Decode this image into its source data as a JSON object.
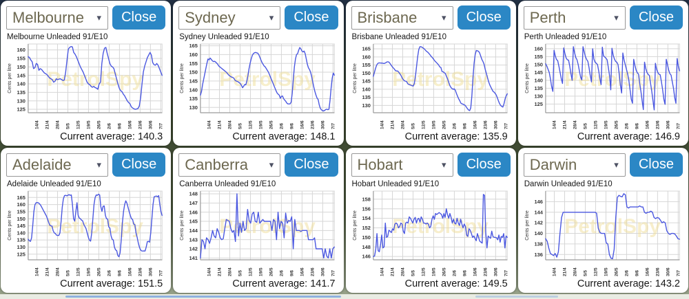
{
  "labels": {
    "close": "Close",
    "avg_prefix": "Current average:"
  },
  "watermark": "PetrolSpy",
  "colors": {
    "close_button": "#2b87c5",
    "line": "#4a57e0",
    "grid": "#d6d6d6",
    "axis": "#9b9b9b",
    "tick_text": "#333333",
    "watermark": "#f0df9a"
  },
  "panels": [
    {
      "city": "Melbourne",
      "title": "Melbourne Unleaded 91/E10",
      "average": "140.3"
    },
    {
      "city": "Sydney",
      "title": "Sydney Unleaded 91/E10",
      "average": "148.1"
    },
    {
      "city": "Brisbane",
      "title": "Brisbane Unleaded 91/E10",
      "average": "135.9"
    },
    {
      "city": "Perth",
      "title": "Perth Unleaded 91/E10",
      "average": "146.9"
    },
    {
      "city": "Adelaide",
      "title": "Adelaide Unleaded 91/E10",
      "average": "151.5"
    },
    {
      "city": "Canberra",
      "title": "Canberra Unleaded 91/E10",
      "average": "141.7"
    },
    {
      "city": "Hobart",
      "title": "Hobart Unleaded 91/E10",
      "average": "149.5"
    },
    {
      "city": "Darwin",
      "title": "Darwin Unleaded 91/E10",
      "average": "143.2"
    }
  ],
  "chart_data": [
    {
      "type": "line",
      "title": "Melbourne Unleaded 91/E10",
      "ylabel": "Cents per litre",
      "x": [
        "14/4",
        "21/4",
        "28/4",
        "5/5",
        "12/5",
        "19/5",
        "26/5",
        "2/6",
        "9/6",
        "16/6",
        "23/6",
        "30/6",
        "7/7"
      ],
      "yticks": [
        125,
        130,
        135,
        140,
        145,
        150,
        155,
        160
      ],
      "ylim": [
        123,
        163.5
      ],
      "average": 140.3,
      "values": [
        156,
        155.5,
        154,
        153,
        149,
        149.5,
        152,
        151.5,
        148,
        149,
        148.5,
        147.5,
        146.5,
        146,
        145.5,
        144.5,
        143.5,
        143,
        142.5,
        141,
        141.5,
        143,
        142.5,
        142.8,
        143,
        142.5,
        142,
        142.3,
        147,
        154,
        160.5,
        161.5,
        162,
        161.8,
        158.5,
        157.5,
        156,
        154,
        152,
        150,
        148.5,
        147,
        145,
        143,
        141,
        140,
        139.5,
        138.5,
        138,
        138.5,
        137.8,
        137.5,
        136.8,
        140,
        141,
        152,
        158,
        161,
        161.5,
        158,
        155,
        152,
        150.5,
        150,
        149,
        146,
        143,
        140,
        137.5,
        136,
        135.5,
        134,
        133,
        131.5,
        130,
        129,
        128.3,
        126.5,
        125.8,
        125.3,
        125,
        125.2,
        125.5,
        127,
        132,
        140,
        147,
        150.5,
        153,
        155.5,
        157,
        158.5,
        157,
        152.5,
        151.3,
        151,
        152,
        151,
        149,
        147,
        145
      ]
    },
    {
      "type": "line",
      "title": "Sydney Unleaded 91/E10",
      "ylabel": "Cents per litre",
      "x": [
        "14/4",
        "21/4",
        "28/4",
        "5/5",
        "12/5",
        "19/5",
        "26/5",
        "2/6",
        "9/6",
        "16/6",
        "23/6",
        "30/6",
        "7/7"
      ],
      "yticks": [
        130,
        135,
        140,
        145,
        150,
        155,
        160,
        165
      ],
      "ylim": [
        127,
        166
      ],
      "average": 148.1,
      "values": [
        137,
        139,
        143,
        146,
        149,
        152,
        155,
        157.5,
        157,
        158,
        157.3,
        156.5,
        156,
        156.2,
        155.8,
        155.2,
        154.5,
        153.5,
        153,
        152.5,
        152,
        151.5,
        151,
        150.5,
        150,
        149.3,
        148.5,
        148,
        147.5,
        147.2,
        147,
        146.5,
        145.5,
        145,
        144.8,
        144.5,
        144,
        143.5,
        142.5,
        141.2,
        142,
        143,
        142.8,
        145,
        148,
        152,
        155,
        157.5,
        159.5,
        160.5,
        161,
        161.2,
        161,
        160.8,
        160,
        158.5,
        157,
        155.5,
        154.5,
        153.5,
        153,
        152,
        151,
        150,
        148.5,
        147,
        145.5,
        144,
        142.5,
        141,
        139.5,
        138.2,
        137.5,
        137,
        135.2,
        136.3,
        136.5,
        135,
        134.2,
        133.5,
        132.5,
        132,
        132,
        132,
        133,
        138,
        146,
        153,
        157.5,
        160,
        160.5,
        162.5,
        164,
        163.2,
        162,
        161.5,
        162,
        160.5,
        157.5,
        154.5,
        152.5,
        151.5,
        150,
        147.5,
        144.5,
        141.5,
        139,
        137,
        135.3,
        134.5,
        131.5,
        129.5,
        128.7,
        128.2,
        128,
        128.3,
        128.8,
        129,
        128.7,
        129,
        134,
        141,
        146.5,
        149.5,
        148.3
      ]
    },
    {
      "type": "line",
      "title": "Brisbane Unleaded 91/E10",
      "ylabel": "Cents per litre",
      "x": [
        "14/4",
        "21/4",
        "28/4",
        "5/5",
        "12/5",
        "19/5",
        "26/5",
        "2/6",
        "9/6",
        "16/6",
        "23/6",
        "30/6",
        "7/7"
      ],
      "yticks": [
        130,
        135,
        140,
        145,
        150,
        155,
        160,
        165
      ],
      "ylim": [
        125.5,
        168
      ],
      "average": 135.9,
      "values": [
        148,
        150.5,
        153,
        155,
        156,
        156.3,
        156.3,
        156.2,
        156.2,
        156,
        156,
        156.3,
        156.8,
        157,
        156.8,
        156,
        155,
        154,
        153.2,
        152.5,
        151.5,
        151.3,
        151.3,
        150.5,
        149.5,
        148.5,
        147,
        146,
        145.3,
        145,
        144.8,
        143.5,
        143,
        142.8,
        142.5,
        142.2,
        142,
        143.5,
        148,
        154,
        160,
        164.5,
        166.3,
        166.3,
        166,
        165.5,
        165,
        164.2,
        163.5,
        163,
        162.3,
        161.5,
        160.5,
        159.8,
        159,
        158,
        157.2,
        156.5,
        155.8,
        155,
        153.8,
        153.5,
        151,
        150.8,
        150.3,
        149.8,
        148,
        146.5,
        144.5,
        142.5,
        141.2,
        140.5,
        140,
        140.3,
        139.5,
        137.5,
        135.8,
        134.2,
        133,
        131.5,
        131,
        130.8,
        130.4,
        130,
        129,
        128,
        127.2,
        126.8,
        128.5,
        136,
        147,
        156,
        161.5,
        164,
        163.8,
        163.5,
        162.5,
        160.5,
        158.5,
        157.2,
        155.5,
        152.5,
        150,
        147.5,
        145,
        143,
        141.5,
        140.2,
        138.8,
        138.3,
        137.5,
        136.5,
        134.8,
        132.8,
        131.2,
        130,
        129.4,
        129,
        131,
        134,
        136,
        137.2
      ]
    },
    {
      "type": "line",
      "title": "Perth Unleaded 91/E10",
      "ylabel": "Cents per litre",
      "x": [
        "14/4",
        "21/4",
        "28/4",
        "5/5",
        "12/5",
        "19/5",
        "26/5",
        "2/6",
        "9/6",
        "16/6",
        "23/6",
        "30/6",
        "7/7"
      ],
      "yticks": [
        125,
        130,
        135,
        140,
        145,
        150,
        155,
        160
      ],
      "ylim": [
        119.5,
        163
      ],
      "average": 146.9,
      "values": [
        150.5,
        149,
        147,
        145,
        141,
        136,
        133,
        159,
        155.5,
        153.2,
        152.5,
        149,
        145,
        141,
        138,
        160.5,
        157,
        154.2,
        153,
        152.8,
        149,
        144,
        140,
        161.3,
        157.5,
        154.5,
        153,
        150,
        146,
        142,
        140.3,
        161.3,
        158,
        155,
        153.2,
        152,
        148,
        143,
        139,
        160,
        153.5,
        151.5,
        150.8,
        150,
        146,
        141,
        137.3,
        161,
        155.5,
        154.8,
        154,
        153,
        148,
        143,
        134,
        160.3,
        156,
        153.5,
        152,
        151.5,
        150,
        144,
        137,
        132,
        157.3,
        153,
        150,
        147,
        144,
        140,
        134,
        128,
        125.5,
        153.3,
        149.5,
        146.5,
        144.8,
        144,
        138,
        133,
        127,
        121.5,
        151.5,
        147.5,
        145,
        143.8,
        143,
        138,
        133,
        127,
        121.3,
        150.8,
        147,
        145,
        143.8,
        143.5,
        139,
        134,
        128,
        124.8,
        153.3,
        150,
        146.5,
        144.2,
        143.3,
        139,
        135,
        129,
        125.5,
        153.8,
        149,
        146
      ]
    },
    {
      "type": "line",
      "title": "Adelaide Unleaded 91/E10",
      "ylabel": "Cents per litre",
      "x": [
        "14/4",
        "21/4",
        "28/4",
        "5/5",
        "12/5",
        "19/5",
        "26/5",
        "2/6",
        "9/6",
        "16/6",
        "23/6",
        "30/6",
        "7/7"
      ],
      "yticks": [
        125,
        130,
        135,
        140,
        145,
        150,
        155,
        160,
        165
      ],
      "ylim": [
        121,
        169.5
      ],
      "average": 151.5,
      "values": [
        135.5,
        134.5,
        134,
        136.5,
        145,
        155,
        160,
        161.3,
        161.4,
        161.2,
        160.5,
        159.5,
        158,
        156.5,
        155,
        153.5,
        152,
        150,
        147.5,
        145.5,
        145,
        144.8,
        141.5,
        140,
        139.5,
        138.4,
        138.2,
        138.2,
        140,
        148,
        158,
        164,
        166.3,
        166.5,
        166.2,
        166.5,
        167,
        166.5,
        166.8,
        160,
        150,
        148.3,
        155,
        161.3,
        152.5,
        150.5,
        150,
        149,
        148.5,
        146,
        144.5,
        143,
        140,
        137,
        134.8,
        134.2,
        140,
        150,
        160,
        165,
        166.8,
        166.5,
        167.3,
        166.8,
        158.5,
        155.2,
        158.8,
        159,
        152.5,
        150,
        149.8,
        144.2,
        143.5,
        138,
        135.5,
        135,
        130,
        128,
        127.5,
        124,
        123.2,
        126,
        135,
        147,
        155,
        160,
        162.6,
        161,
        158,
        155,
        152.3,
        150,
        149.5,
        146.2,
        145.8,
        140,
        137,
        133,
        130,
        128,
        127.3,
        127.2,
        127.3,
        127.2,
        130,
        133.8,
        134,
        133.5,
        140,
        150,
        160,
        165.5,
        165.8,
        166,
        165.5,
        166.3,
        160,
        155,
        152.3
      ]
    },
    {
      "type": "line",
      "title": "Canberra Unleaded 91/E10",
      "ylabel": "Cents per litre",
      "x": [
        "14/4",
        "21/4",
        "28/4",
        "5/5",
        "12/5",
        "19/5",
        "26/5",
        "2/6",
        "9/6",
        "16/6",
        "23/6",
        "30/6",
        "7/7"
      ],
      "yticks": [
        141,
        142,
        143,
        144,
        145,
        146,
        147,
        148
      ],
      "ylim": [
        140.8,
        148.3
      ],
      "average": 141.7,
      "values": [
        141,
        143,
        142.8,
        142,
        143.2,
        143,
        142.6,
        143.2,
        144,
        143.4,
        143.2,
        144.2,
        143.8,
        143.2,
        143,
        143.1,
        144.2,
        145.2,
        145.1,
        145,
        144.2,
        143.8,
        144,
        142.8,
        148,
        143.4,
        144.8,
        143.8,
        145,
        144,
        144.2,
        146.3,
        145.1,
        144.8,
        145.8,
        146,
        145,
        144.9,
        146,
        144.8,
        145,
        145.2,
        145,
        145,
        145,
        145,
        145,
        144,
        145.2,
        145,
        143,
        146,
        144.2,
        145,
        144.8,
        143.2,
        145.9,
        144.8,
        145.1,
        145,
        145.5,
        142,
        145.2,
        144,
        144,
        144,
        143.9,
        144,
        144,
        144,
        144,
        143,
        143,
        143,
        143,
        143.2,
        142,
        142,
        142,
        142,
        142,
        141,
        142,
        141.2,
        141,
        142,
        141,
        142,
        142.2
      ]
    },
    {
      "type": "line",
      "title": "Hobart Unleaded 91/E10",
      "ylabel": "Cents per litre",
      "x": [
        "14/4",
        "21/4",
        "28/4",
        "5/5",
        "12/5",
        "19/5",
        "26/5",
        "2/6",
        "9/6",
        "16/6",
        "23/6",
        "30/6",
        "7/7"
      ],
      "yticks": [
        146,
        148,
        150,
        152,
        154,
        156,
        158
      ],
      "ylim": [
        145.3,
        159.7
      ],
      "average": 149.5,
      "values": [
        146,
        146.1,
        147.5,
        150.8,
        147.2,
        147,
        148.5,
        150.5,
        147.8,
        148,
        153,
        150,
        150.2,
        151.5,
        151.3,
        151,
        151.8,
        151.5,
        152.8,
        153,
        152.8,
        152,
        152.3,
        153,
        152.8,
        151.3,
        150.8,
        153,
        153.2,
        153,
        154.3,
        154,
        153.5,
        153,
        153.8,
        154.2,
        153,
        153.8,
        154,
        153.2,
        154.3,
        153.8,
        153,
        153,
        152.8,
        153,
        152.8,
        152,
        152.3,
        153.8,
        154.5,
        153.8,
        155,
        154.8,
        155,
        155.2,
        155,
        154.8,
        154,
        155,
        154.2,
        156,
        154.8,
        154,
        155,
        154.2,
        153,
        153.8,
        153,
        152.8,
        154,
        153,
        152.5,
        153.8,
        152.8,
        152,
        152.8,
        152.3,
        150.5,
        150.2,
        151.8,
        151.5,
        150.8,
        150,
        150.3,
        149.8,
        149.3,
        150.8,
        150,
        149.2,
        149,
        148.8,
        159,
        158.8,
        151,
        147.8,
        150.3,
        150,
        149.8,
        151.3,
        150.2,
        150,
        150,
        149.9,
        149.5,
        150.5,
        149,
        150.2,
        150,
        150.8,
        147.8,
        150.3,
        150
      ]
    },
    {
      "type": "line",
      "title": "Darwin Unleaded 91/E10",
      "ylabel": "Cents per litre",
      "x": [
        "14/4",
        "21/4",
        "28/4",
        "5/5",
        "12/5",
        "19/5",
        "26/5",
        "2/6",
        "9/6",
        "16/6",
        "23/6",
        "30/6",
        "7/7"
      ],
      "yticks": [
        136,
        138,
        140,
        142,
        144,
        146
      ],
      "ylim": [
        135,
        148
      ],
      "average": 143.2,
      "values": [
        139,
        138.5,
        137.2,
        136.2,
        136,
        135.8,
        136.2,
        135.5,
        136.5,
        140,
        143,
        144,
        144,
        144,
        144,
        144,
        144,
        144,
        144,
        144,
        144,
        144,
        144,
        144,
        144,
        144,
        144,
        144,
        144,
        144,
        144,
        144,
        143.8,
        141,
        140.2,
        140,
        140,
        140,
        138.2,
        138,
        136,
        135.3,
        135.2,
        137,
        143,
        146.8,
        147.2,
        147,
        146.9,
        147.5,
        147.3,
        145,
        144.8,
        145,
        145,
        145,
        145,
        145,
        145,
        145.2,
        145,
        145,
        144,
        143.8,
        144,
        144,
        144.2,
        144,
        143,
        142.8,
        143,
        142.9,
        142.5,
        142,
        142.2,
        142,
        140.5,
        140,
        139.8,
        140,
        140,
        139.9,
        139.5,
        139,
        138.9
      ]
    }
  ]
}
